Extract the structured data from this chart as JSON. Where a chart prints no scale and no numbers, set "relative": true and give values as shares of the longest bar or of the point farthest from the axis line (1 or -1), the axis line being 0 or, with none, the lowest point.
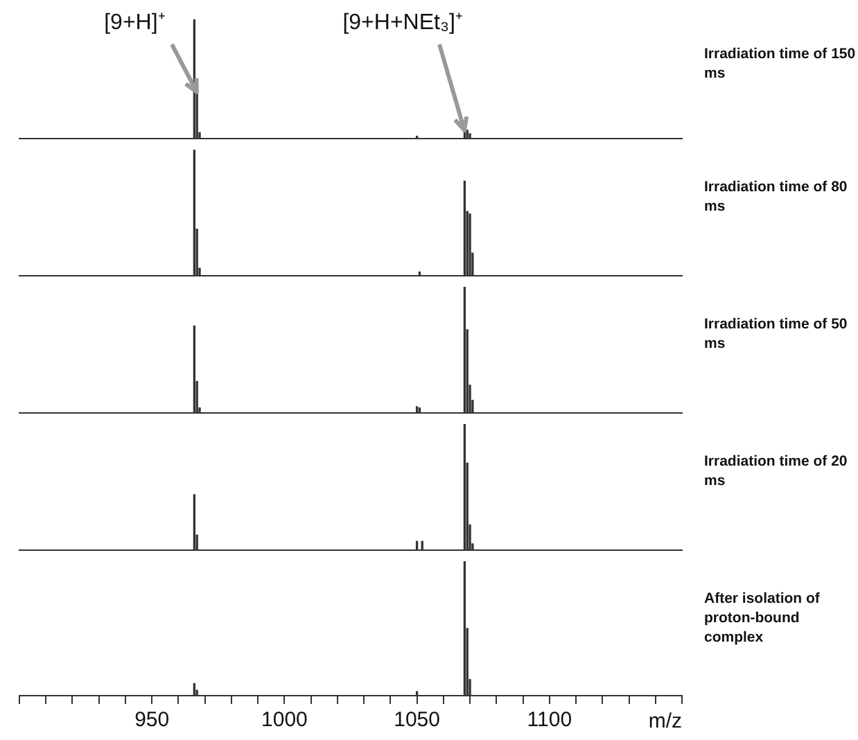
{
  "chart_data": [
    {
      "type": "bar",
      "relative": true,
      "color": "#333333",
      "xlim": [
        900,
        1150
      ],
      "tick_labels": false,
      "x": [
        966,
        967,
        968,
        1050,
        1068,
        1069,
        1070
      ],
      "values": [
        1,
        0.39,
        0.05,
        0.02,
        0.07,
        0.07,
        0.04
      ],
      "annotations": [
        "Irradiation time of 150 ms",
        {
          "text": "[9+H]⁺",
          "x": 967,
          "y": 0.39
        },
        {
          "text": "[9+H+NEt₃]⁺",
          "x": 1068,
          "y": 0.07
        }
      ]
    },
    {
      "type": "bar",
      "relative": true,
      "color": "#333333",
      "xlim": [
        900,
        1150
      ],
      "tick_labels": false,
      "x": [
        966,
        967,
        968,
        1051,
        1068,
        1069,
        1070,
        1071
      ],
      "values": [
        1,
        0.37,
        0.06,
        0.03,
        0.75,
        0.51,
        0.49,
        0.18
      ],
      "annotations": [
        "Irradiation time of 80 ms"
      ]
    },
    {
      "type": "bar",
      "relative": true,
      "color": "#333333",
      "xlim": [
        900,
        1150
      ],
      "tick_labels": false,
      "x": [
        966,
        967,
        968,
        1050,
        1051,
        1068,
        1069,
        1070,
        1071
      ],
      "values": [
        0.69,
        0.25,
        0.04,
        0.05,
        0.04,
        1,
        0.66,
        0.22,
        0.1
      ],
      "annotations": [
        "Irradiation time of 50 ms"
      ]
    },
    {
      "type": "bar",
      "relative": true,
      "color": "#333333",
      "xlim": [
        900,
        1150
      ],
      "tick_labels": false,
      "x": [
        966,
        967,
        1050,
        1052,
        1068,
        1069,
        1070,
        1071
      ],
      "values": [
        0.44,
        0.12,
        0.07,
        0.07,
        1,
        0.69,
        0.2,
        0.05
      ],
      "annotations": [
        "Irradiation time of 20 ms"
      ]
    },
    {
      "type": "bar",
      "relative": true,
      "color": "#333333",
      "xlim": [
        900,
        1150
      ],
      "tick_labels": "x",
      "xlabel": "m/z",
      "x": [
        966,
        967,
        1050,
        1068,
        1069,
        1070
      ],
      "values": [
        0.09,
        0.04,
        0.03,
        1,
        0.5,
        0.12
      ],
      "annotations": [
        "After isolation of proton-bound complex"
      ],
      "xticks": [
        {
          "value": 900,
          "label": null
        },
        {
          "value": 910,
          "label": null
        },
        {
          "value": 920,
          "label": null
        },
        {
          "value": 930,
          "label": null
        },
        {
          "value": 940,
          "label": null
        },
        950,
        {
          "value": 960,
          "label": null
        },
        {
          "value": 970,
          "label": null
        },
        {
          "value": 980,
          "label": null
        },
        {
          "value": 990,
          "label": null
        },
        1000,
        {
          "value": 1010,
          "label": null
        },
        {
          "value": 1020,
          "label": null
        },
        {
          "value": 1030,
          "label": null
        },
        {
          "value": 1040,
          "label": null
        },
        1050,
        {
          "value": 1060,
          "label": null
        },
        {
          "value": 1070,
          "label": null
        },
        {
          "value": 1080,
          "label": null
        },
        {
          "value": 1090,
          "label": null
        },
        1100,
        {
          "value": 1110,
          "label": null
        },
        {
          "value": 1120,
          "label": null
        },
        {
          "value": 1130,
          "label": null
        },
        {
          "value": 1140,
          "label": null
        },
        {
          "value": 1150,
          "label": null
        }
      ]
    }
  ]
}
